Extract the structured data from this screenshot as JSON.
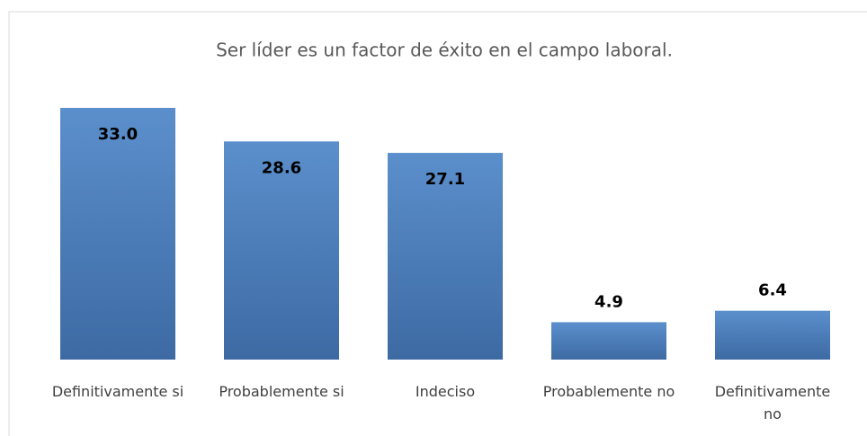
{
  "chart_data": {
    "type": "bar",
    "title": "Ser líder es un factor de éxito en el campo laboral.",
    "categories": [
      "Definitivamente si",
      "Probablemente si",
      "Indeciso",
      "Probablemente no",
      "Definitivamente no"
    ],
    "values": [
      33,
      28.6,
      27.1,
      4.9,
      6.4
    ],
    "value_labels": [
      "33.0",
      "28.6",
      "27.1",
      "4.9",
      "6.4"
    ],
    "color": "#4f81bd"
  }
}
